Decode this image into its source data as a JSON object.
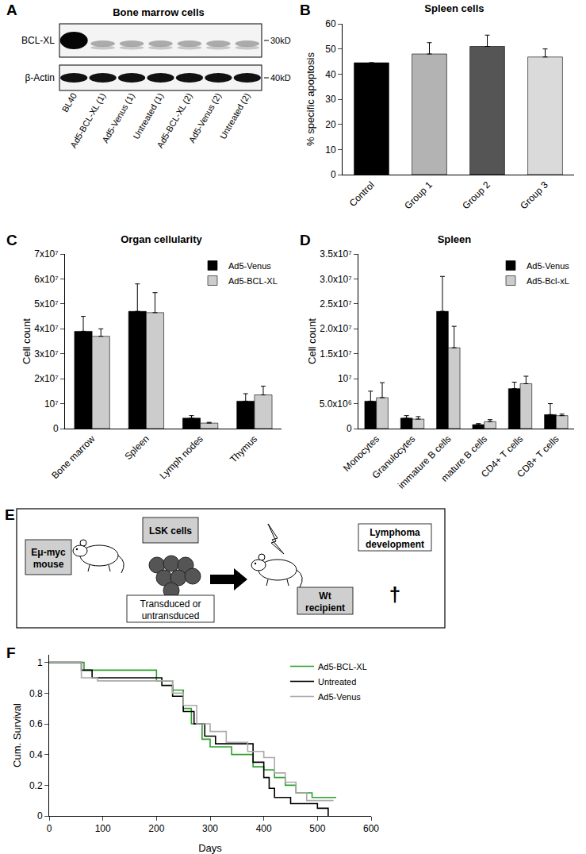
{
  "blot": {
    "panel": "A",
    "title": "Bone marrow cells",
    "rows": [
      {
        "label": "BCL-XL",
        "marker": "30kD"
      },
      {
        "label": "β-Actin",
        "marker": "40kD"
      }
    ],
    "lanes": [
      "BL40",
      "Ad5-BCL-XL (1)",
      "Ad5-Venus (1)",
      "Untreated (1)",
      "Ad5-BCL-XL (2)",
      "Ad5-Venus (2)",
      "Untreated (2)"
    ]
  },
  "chart_data": [
    {
      "panel": "B",
      "type": "bar",
      "title": "Spleen cells",
      "y_label": "% specific apoptosis",
      "categories": [
        "Control",
        "Group 1",
        "Group 2",
        "Group 3"
      ],
      "values": [
        44.5,
        48,
        51,
        46.8
      ],
      "errors": [
        0,
        4.5,
        4.5,
        3.2
      ],
      "colors": [
        "#000000",
        "#b3b3b3",
        "#555555",
        "#dadada"
      ],
      "ylim": [
        0,
        60
      ],
      "yticks": [
        0,
        10,
        20,
        30,
        40,
        50,
        60
      ]
    },
    {
      "panel": "C",
      "type": "bar",
      "title": "Organ cellularity",
      "y_label": "Cell count",
      "categories": [
        "Bone marrow",
        "Spleen",
        "Lymph nodes",
        "Thymus"
      ],
      "series": [
        {
          "name": "Ad5-Venus",
          "color": "#000000",
          "values": [
            39000000,
            47000000,
            4200000,
            11000000
          ],
          "errors": [
            6000000,
            11000000,
            1000000,
            3000000
          ]
        },
        {
          "name": "Ad5-BCL-XL",
          "color": "#cccccc",
          "values": [
            37000000,
            46500000,
            2200000,
            13500000
          ],
          "errors": [
            3000000,
            8000000,
            300000,
            3500000
          ]
        }
      ],
      "ylim": [
        0,
        70000000
      ],
      "yticks": [
        0,
        {
          "value": 10000000,
          "label": "10⁷"
        },
        {
          "value": 20000000,
          "label": "2x10⁷"
        },
        {
          "value": 30000000,
          "label": "3x10⁷"
        },
        {
          "value": 40000000,
          "label": "4x10⁷"
        },
        {
          "value": 50000000,
          "label": "5x10⁷"
        },
        {
          "value": 60000000,
          "label": "6x10⁷"
        },
        {
          "value": 70000000,
          "label": "7x10⁷"
        }
      ],
      "legend": "top right"
    },
    {
      "panel": "D",
      "type": "bar",
      "title": "Spleen",
      "y_label": "Cell count",
      "categories": [
        "Monocytes",
        "Granulocytes",
        "immature B cells",
        "mature B cells",
        "CD4+ T cells",
        "CD8+ T cells"
      ],
      "series": [
        {
          "name": "Ad5-Venus",
          "color": "#000000",
          "values": [
            5500000,
            2100000,
            23500000,
            800000,
            8000000,
            2800000
          ],
          "errors": [
            2000000,
            500000,
            7000000,
            200000,
            1300000,
            2200000
          ]
        },
        {
          "name": "Ad5-Bcl-xL",
          "color": "#cccccc",
          "values": [
            6200000,
            1900000,
            16200000,
            1400000,
            9000000,
            2600000
          ],
          "errors": [
            3000000,
            500000,
            4300000,
            400000,
            1500000,
            300000
          ]
        }
      ],
      "ylim": [
        0,
        35000000
      ],
      "yticks": [
        0,
        {
          "value": 5000000,
          "label": "5.0x10⁶"
        },
        {
          "value": 10000000,
          "label": "10⁷"
        },
        {
          "value": 15000000,
          "label": "1.5x10⁷"
        },
        {
          "value": 20000000,
          "label": "2.0x10⁷"
        },
        {
          "value": 25000000,
          "label": "2.5x10⁷"
        },
        {
          "value": 30000000,
          "label": "3.0x10⁷"
        },
        {
          "value": 35000000,
          "label": "3.5x10⁷"
        }
      ],
      "legend": "top right"
    },
    {
      "panel": "F",
      "type": "line",
      "x_label": "Days",
      "y_label": "Cum. Survival",
      "line_style": "step",
      "series": [
        {
          "name": "Ad5-BCL-XL",
          "color": "#2ca02c",
          "x": [
            0,
            65,
            200,
            230,
            250,
            265,
            285,
            300,
            340,
            380,
            400,
            420,
            440,
            460,
            490,
            535
          ],
          "values": [
            1,
            0.95,
            0.88,
            0.82,
            0.7,
            0.6,
            0.5,
            0.45,
            0.4,
            0.32,
            0.3,
            0.25,
            0.2,
            0.15,
            0.12,
            0.12
          ]
        },
        {
          "name": "Untreated",
          "color": "#000000",
          "x": [
            0,
            60,
            80,
            210,
            230,
            250,
            270,
            290,
            310,
            350,
            380,
            400,
            410,
            420,
            450,
            500,
            520
          ],
          "values": [
            1,
            0.95,
            0.9,
            0.85,
            0.78,
            0.68,
            0.6,
            0.52,
            0.47,
            0.47,
            0.35,
            0.25,
            0.18,
            0.12,
            0.08,
            0.05,
            0
          ]
        },
        {
          "name": "Ad5-Venus",
          "color": "#aaaaaa",
          "x": [
            0,
            60,
            90,
            230,
            250,
            275,
            300,
            330,
            370,
            400,
            420,
            440,
            460,
            480,
            530
          ],
          "values": [
            1,
            0.9,
            0.88,
            0.8,
            0.72,
            0.6,
            0.55,
            0.48,
            0.42,
            0.38,
            0.28,
            0.22,
            0.15,
            0.1,
            0.1
          ]
        }
      ],
      "xlim": [
        0,
        600
      ],
      "xticks": [
        0,
        100,
        200,
        300,
        400,
        500,
        600
      ],
      "ylim": [
        0,
        1.05
      ],
      "yticks": [
        0,
        0.2,
        0.4,
        0.6,
        0.8,
        1
      ],
      "legend": "top right"
    }
  ],
  "schematic": {
    "panel": "E",
    "donor": "Eμ-myc mouse",
    "cells": "LSK cells",
    "treatment": "Transduced or untransduced",
    "recipient": "Wt recipient",
    "outcome": "Lymphoma development",
    "death_symbol": "†"
  }
}
